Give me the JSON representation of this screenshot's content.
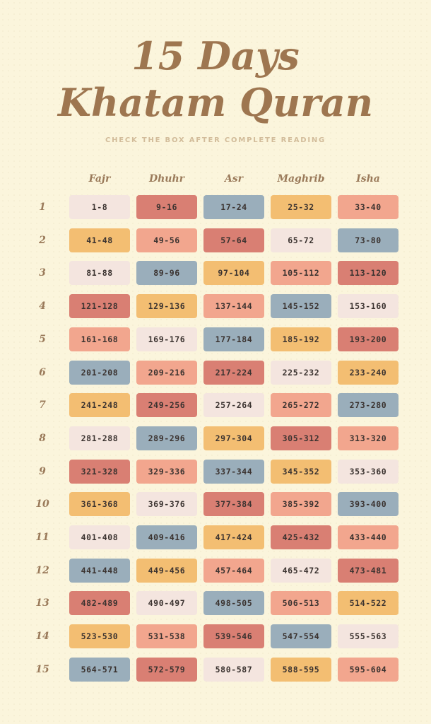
{
  "header": {
    "title_line1": "15 Days",
    "title_line2": "Khatam Quran",
    "subtitle": "CHECK THE BOX AFTER COMPLETE READING"
  },
  "columns": [
    "Fajr",
    "Dhuhr",
    "Asr",
    "Maghrib",
    "Isha"
  ],
  "colors": {
    "cream": "#f4e5df",
    "yellow": "#f3be72",
    "salmon": "#f2a68e",
    "red": "#d97f73",
    "blue": "#9aaebb"
  },
  "rows": [
    {
      "day": "1",
      "cells": [
        {
          "text": "1-8",
          "color": "cream"
        },
        {
          "text": "9-16",
          "color": "red"
        },
        {
          "text": "17-24",
          "color": "blue"
        },
        {
          "text": "25-32",
          "color": "yellow"
        },
        {
          "text": "33-40",
          "color": "salmon"
        }
      ]
    },
    {
      "day": "2",
      "cells": [
        {
          "text": "41-48",
          "color": "yellow"
        },
        {
          "text": "49-56",
          "color": "salmon"
        },
        {
          "text": "57-64",
          "color": "red"
        },
        {
          "text": "65-72",
          "color": "cream"
        },
        {
          "text": "73-80",
          "color": "blue"
        }
      ]
    },
    {
      "day": "3",
      "cells": [
        {
          "text": "81-88",
          "color": "cream"
        },
        {
          "text": "89-96",
          "color": "blue"
        },
        {
          "text": "97-104",
          "color": "yellow"
        },
        {
          "text": "105-112",
          "color": "salmon"
        },
        {
          "text": "113-120",
          "color": "red"
        }
      ]
    },
    {
      "day": "4",
      "cells": [
        {
          "text": "121-128",
          "color": "red"
        },
        {
          "text": "129-136",
          "color": "yellow"
        },
        {
          "text": "137-144",
          "color": "salmon"
        },
        {
          "text": "145-152",
          "color": "blue"
        },
        {
          "text": "153-160",
          "color": "cream"
        }
      ]
    },
    {
      "day": "5",
      "cells": [
        {
          "text": "161-168",
          "color": "salmon"
        },
        {
          "text": "169-176",
          "color": "cream"
        },
        {
          "text": "177-184",
          "color": "blue"
        },
        {
          "text": "185-192",
          "color": "yellow"
        },
        {
          "text": "193-200",
          "color": "red"
        }
      ]
    },
    {
      "day": "6",
      "cells": [
        {
          "text": "201-208",
          "color": "blue"
        },
        {
          "text": "209-216",
          "color": "salmon"
        },
        {
          "text": "217-224",
          "color": "red"
        },
        {
          "text": "225-232",
          "color": "cream"
        },
        {
          "text": "233-240",
          "color": "yellow"
        }
      ]
    },
    {
      "day": "7",
      "cells": [
        {
          "text": "241-248",
          "color": "yellow"
        },
        {
          "text": "249-256",
          "color": "red"
        },
        {
          "text": "257-264",
          "color": "cream"
        },
        {
          "text": "265-272",
          "color": "salmon"
        },
        {
          "text": "273-280",
          "color": "blue"
        }
      ]
    },
    {
      "day": "8",
      "cells": [
        {
          "text": "281-288",
          "color": "cream"
        },
        {
          "text": "289-296",
          "color": "blue"
        },
        {
          "text": "297-304",
          "color": "yellow"
        },
        {
          "text": "305-312",
          "color": "red"
        },
        {
          "text": "313-320",
          "color": "salmon"
        }
      ]
    },
    {
      "day": "9",
      "cells": [
        {
          "text": "321-328",
          "color": "red"
        },
        {
          "text": "329-336",
          "color": "salmon"
        },
        {
          "text": "337-344",
          "color": "blue"
        },
        {
          "text": "345-352",
          "color": "yellow"
        },
        {
          "text": "353-360",
          "color": "cream"
        }
      ]
    },
    {
      "day": "10",
      "cells": [
        {
          "text": "361-368",
          "color": "yellow"
        },
        {
          "text": "369-376",
          "color": "cream"
        },
        {
          "text": "377-384",
          "color": "red"
        },
        {
          "text": "385-392",
          "color": "salmon"
        },
        {
          "text": "393-400",
          "color": "blue"
        }
      ]
    },
    {
      "day": "11",
      "cells": [
        {
          "text": "401-408",
          "color": "cream"
        },
        {
          "text": "409-416",
          "color": "blue"
        },
        {
          "text": "417-424",
          "color": "yellow"
        },
        {
          "text": "425-432",
          "color": "red"
        },
        {
          "text": "433-440",
          "color": "salmon"
        }
      ]
    },
    {
      "day": "12",
      "cells": [
        {
          "text": "441-448",
          "color": "blue"
        },
        {
          "text": "449-456",
          "color": "yellow"
        },
        {
          "text": "457-464",
          "color": "salmon"
        },
        {
          "text": "465-472",
          "color": "cream"
        },
        {
          "text": "473-481",
          "color": "red"
        }
      ]
    },
    {
      "day": "13",
      "cells": [
        {
          "text": "482-489",
          "color": "red"
        },
        {
          "text": "490-497",
          "color": "cream"
        },
        {
          "text": "498-505",
          "color": "blue"
        },
        {
          "text": "506-513",
          "color": "salmon"
        },
        {
          "text": "514-522",
          "color": "yellow"
        }
      ]
    },
    {
      "day": "14",
      "cells": [
        {
          "text": "523-530",
          "color": "yellow"
        },
        {
          "text": "531-538",
          "color": "salmon"
        },
        {
          "text": "539-546",
          "color": "red"
        },
        {
          "text": "547-554",
          "color": "blue"
        },
        {
          "text": "555-563",
          "color": "cream"
        }
      ]
    },
    {
      "day": "15",
      "cells": [
        {
          "text": "564-571",
          "color": "blue"
        },
        {
          "text": "572-579",
          "color": "red"
        },
        {
          "text": "580-587",
          "color": "cream"
        },
        {
          "text": "588-595",
          "color": "yellow"
        },
        {
          "text": "595-604",
          "color": "salmon"
        }
      ]
    }
  ]
}
